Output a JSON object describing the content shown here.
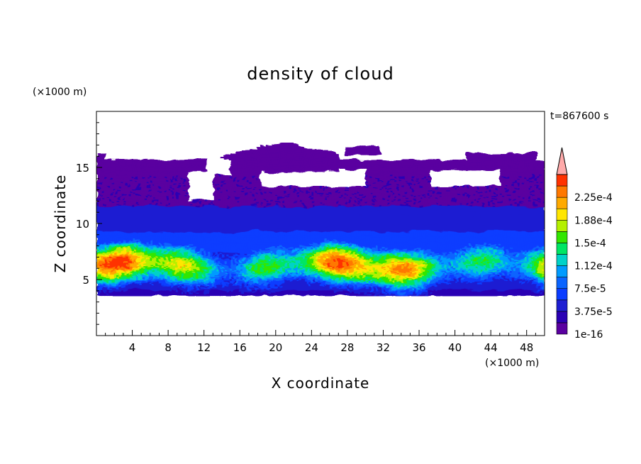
{
  "chart_data": {
    "type": "heatmap",
    "title": "density of cloud",
    "time_label": "t=867600 s",
    "xlabel": "X coordinate",
    "ylabel": "Z coordinate",
    "x_unit": "(×1000 m)",
    "y_unit": "(×1000 m)",
    "xlim": [
      0,
      50
    ],
    "ylim": [
      0,
      20
    ],
    "x_ticks": [
      4,
      8,
      12,
      16,
      20,
      24,
      28,
      32,
      36,
      40,
      44,
      48
    ],
    "y_ticks": [
      5,
      10,
      15
    ],
    "colorbar": {
      "tick_labels": [
        "1e-16",
        "3.75e-5",
        "7.5e-5",
        "1.12e-4",
        "1.5e-4",
        "1.88e-4",
        "2.25e-4"
      ],
      "tick_values": [
        1e-16,
        3.75e-05,
        7.5e-05,
        0.000112,
        0.00015,
        0.000188,
        0.000225
      ],
      "levels": [
        1e-16,
        1.875e-05,
        3.75e-05,
        5.625e-05,
        7.5e-05,
        9.375e-05,
        0.0001125,
        0.00013125,
        0.00015,
        0.00016875,
        0.0001875,
        0.00020625,
        0.000225,
        0.00024375
      ],
      "colors": [
        "#5a00a0",
        "#2a00b4",
        "#1e1ed2",
        "#0a3cff",
        "#0a64ff",
        "#009bff",
        "#00d2c8",
        "#00e664",
        "#32e600",
        "#b4f000",
        "#ffe600",
        "#ffaa00",
        "#ff7800",
        "#ff3200"
      ],
      "overflow_color": "#ffaaaa"
    },
    "cloud_layers": [
      {
        "z_bottom": 3.5,
        "z_top": 15.5,
        "description_value": "low density (purple) over full domain"
      },
      {
        "z_bottom": 4.0,
        "z_top": 11.0,
        "peak_z": 6.0
      }
    ],
    "max_band": {
      "z_center": 6.2,
      "value_range": [
        0.00015,
        0.000225
      ]
    }
  }
}
